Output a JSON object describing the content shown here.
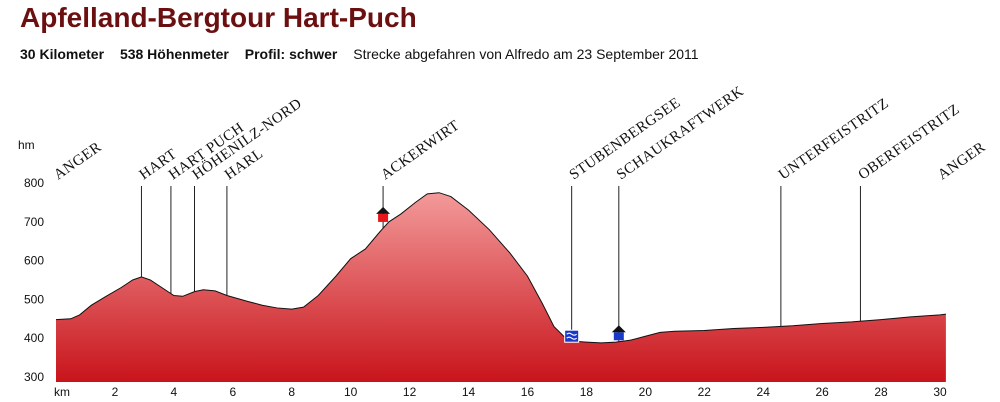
{
  "header": {
    "title": "Apfelland-Bergtour Hart-Puch",
    "distance": "30 Kilometer",
    "ascent": "538 Höhenmeter",
    "profile": "Profil: schwer",
    "note": "Strecke abgefahren von Alfredo am 23 September 2011"
  },
  "colors": {
    "fill_top": "#f39a9a",
    "fill_bottom": "#c8141b",
    "line": "#111111",
    "title": "#6b0f10"
  },
  "chart_data": {
    "type": "area",
    "ylabel": "hm",
    "xlabel": "km",
    "xlim": [
      0,
      30
    ],
    "ylim": [
      300,
      800
    ],
    "x_ticks": [
      2,
      4,
      6,
      8,
      10,
      12,
      14,
      16,
      18,
      20,
      22,
      24,
      26,
      28,
      30
    ],
    "y_ticks": [
      300,
      400,
      500,
      600,
      700,
      800
    ],
    "grid": false,
    "elevation": [
      [
        0,
        448
      ],
      [
        0.5,
        450
      ],
      [
        0.8,
        460
      ],
      [
        1.2,
        485
      ],
      [
        1.7,
        508
      ],
      [
        2.2,
        530
      ],
      [
        2.6,
        550
      ],
      [
        2.9,
        558
      ],
      [
        3.2,
        550
      ],
      [
        3.6,
        530
      ],
      [
        4.0,
        510
      ],
      [
        4.3,
        508
      ],
      [
        4.7,
        520
      ],
      [
        5.0,
        525
      ],
      [
        5.4,
        522
      ],
      [
        5.8,
        510
      ],
      [
        6.5,
        495
      ],
      [
        7.0,
        485
      ],
      [
        7.5,
        478
      ],
      [
        8.0,
        475
      ],
      [
        8.4,
        480
      ],
      [
        8.9,
        510
      ],
      [
        9.5,
        560
      ],
      [
        10.0,
        605
      ],
      [
        10.5,
        630
      ],
      [
        11.0,
        675
      ],
      [
        11.3,
        700
      ],
      [
        11.7,
        720
      ],
      [
        12.2,
        750
      ],
      [
        12.6,
        772
      ],
      [
        13.0,
        775
      ],
      [
        13.4,
        765
      ],
      [
        14.0,
        730
      ],
      [
        14.7,
        680
      ],
      [
        15.4,
        620
      ],
      [
        16.0,
        560
      ],
      [
        16.5,
        490
      ],
      [
        16.9,
        430
      ],
      [
        17.3,
        400
      ],
      [
        17.6,
        392
      ],
      [
        18.0,
        390
      ],
      [
        18.5,
        388
      ],
      [
        19.0,
        390
      ],
      [
        19.5,
        395
      ],
      [
        20.0,
        405
      ],
      [
        20.5,
        415
      ],
      [
        21.0,
        418
      ],
      [
        22.0,
        420
      ],
      [
        23.0,
        425
      ],
      [
        24.0,
        428
      ],
      [
        25.0,
        432
      ],
      [
        26.0,
        438
      ],
      [
        27.0,
        442
      ],
      [
        28.0,
        448
      ],
      [
        29.0,
        455
      ],
      [
        30.0,
        460
      ],
      [
        30.2,
        462
      ]
    ],
    "places": [
      {
        "name": "Anger",
        "km": 0.0
      },
      {
        "name": "Hart",
        "km": 2.9
      },
      {
        "name": "Hart Puch",
        "km": 3.9
      },
      {
        "name": "Höhenilz-Nord",
        "km": 4.7
      },
      {
        "name": "Harl",
        "km": 5.8
      },
      {
        "name": "Ackerwirt",
        "km": 11.1
      },
      {
        "name": "Stubenbergsee",
        "km": 17.5
      },
      {
        "name": "Schaukraftwerk",
        "km": 19.1
      },
      {
        "name": "Unterfeistritz",
        "km": 24.6
      },
      {
        "name": "Oberfeistritz",
        "km": 27.3
      },
      {
        "name": "Anger",
        "km": 30.0
      }
    ],
    "markers": [
      {
        "type": "inn-icon",
        "km": 11.1,
        "elev": 710,
        "color": "#e8161b"
      },
      {
        "type": "lake-icon",
        "km": 17.5,
        "elev": 400,
        "color": "#1a39c8"
      },
      {
        "type": "building-icon",
        "km": 19.1,
        "elev": 405,
        "color": "#1a39c8"
      }
    ]
  }
}
